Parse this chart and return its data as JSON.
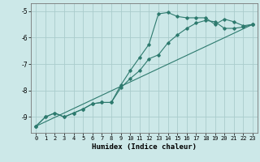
{
  "xlabel": "Humidex (Indice chaleur)",
  "bg_color": "#cce8e8",
  "grid_color": "#aacccc",
  "line_color": "#2d7a6e",
  "xlim": [
    -0.5,
    23.5
  ],
  "ylim": [
    -9.6,
    -4.7
  ],
  "yticks": [
    -9,
    -8,
    -7,
    -6,
    -5
  ],
  "xticks": [
    0,
    1,
    2,
    3,
    4,
    5,
    6,
    7,
    8,
    9,
    10,
    11,
    12,
    13,
    14,
    15,
    16,
    17,
    18,
    19,
    20,
    21,
    22,
    23
  ],
  "curve1_x": [
    0,
    1,
    2,
    3,
    4,
    5,
    6,
    7,
    8,
    9,
    10,
    11,
    12,
    13,
    14,
    15,
    16,
    17,
    18,
    19,
    20,
    21,
    22,
    23
  ],
  "curve1_y": [
    -9.35,
    -9.0,
    -8.85,
    -9.0,
    -8.85,
    -8.7,
    -8.5,
    -8.45,
    -8.45,
    -7.8,
    -7.25,
    -6.75,
    -6.25,
    -5.1,
    -5.05,
    -5.2,
    -5.25,
    -5.25,
    -5.25,
    -5.5,
    -5.3,
    -5.4,
    -5.55,
    -5.5
  ],
  "curve2_x": [
    0,
    1,
    2,
    3,
    4,
    5,
    6,
    7,
    8,
    9,
    10,
    11,
    12,
    13,
    14,
    15,
    16,
    17,
    18,
    19,
    20,
    21,
    22,
    23
  ],
  "curve2_y": [
    -9.35,
    -9.0,
    -8.85,
    -9.0,
    -8.85,
    -8.7,
    -8.5,
    -8.45,
    -8.45,
    -7.9,
    -7.55,
    -7.25,
    -6.8,
    -6.65,
    -6.2,
    -5.9,
    -5.65,
    -5.45,
    -5.35,
    -5.4,
    -5.65,
    -5.65,
    -5.6,
    -5.5
  ],
  "curve3_x": [
    0,
    23
  ],
  "curve3_y": [
    -9.35,
    -5.5
  ]
}
